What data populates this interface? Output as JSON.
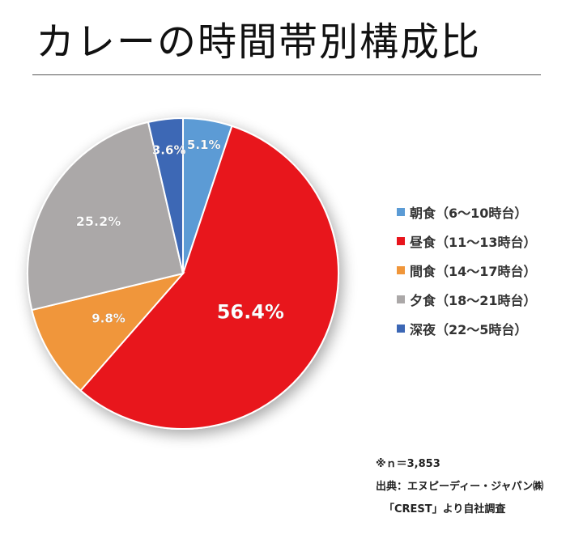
{
  "title": "カレーの時間帯別構成比",
  "chart_data": {
    "type": "pie",
    "start_angle_deg": 0,
    "direction": "clockwise",
    "legend_position": "right",
    "slices": [
      {
        "label": "朝食（6～10時台）",
        "value": 5.1,
        "value_label": "5.1%",
        "color": "#5B9BD5"
      },
      {
        "label": "昼食（11～13時台）",
        "value": 56.4,
        "value_label": "56.4%",
        "color": "#E8141C"
      },
      {
        "label": "間食（14～17時台）",
        "value": 9.8,
        "value_label": "9.8%",
        "color": "#F0963A"
      },
      {
        "label": "夕食（18～21時台）",
        "value": 25.2,
        "value_label": "25.2%",
        "color": "#ABA8A8"
      },
      {
        "label": "深夜（22～5時台）",
        "value": 3.6,
        "value_label": "3.6%",
        "color": "#3C67B5"
      }
    ]
  },
  "notes": {
    "sample": "※ｎ＝3,853",
    "source_line1": "出典：エヌピーディー・ジャパン㈱",
    "source_line2": "「CREST」より自社調査"
  }
}
